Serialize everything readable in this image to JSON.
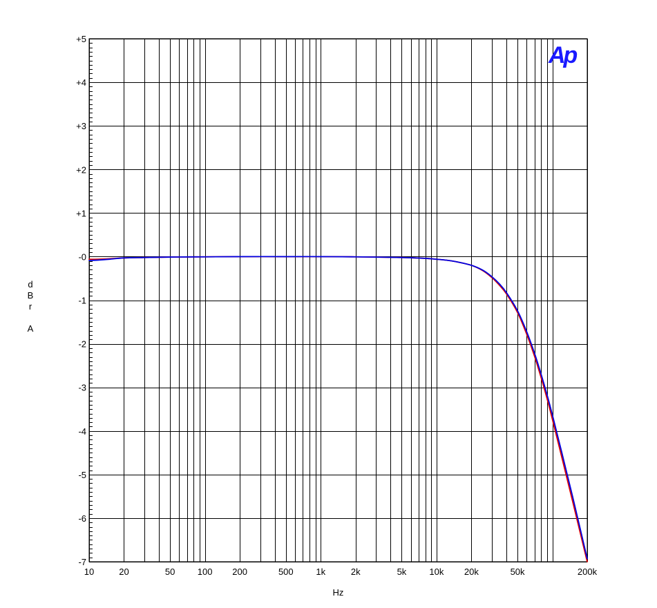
{
  "chart_data": {
    "type": "line",
    "x_scale": "log",
    "xlim": [
      10,
      200000
    ],
    "ylim": [
      -7,
      5
    ],
    "xlabel": "Hz",
    "ylabel_chars": [
      "d",
      "B",
      "r",
      "",
      "A"
    ],
    "x_tick_labels": [
      {
        "value": 10,
        "label": "10"
      },
      {
        "value": 20,
        "label": "20"
      },
      {
        "value": 50,
        "label": "50"
      },
      {
        "value": 100,
        "label": "100"
      },
      {
        "value": 200,
        "label": "200"
      },
      {
        "value": 500,
        "label": "500"
      },
      {
        "value": 1000,
        "label": "1k"
      },
      {
        "value": 2000,
        "label": "2k"
      },
      {
        "value": 5000,
        "label": "5k"
      },
      {
        "value": 10000,
        "label": "10k"
      },
      {
        "value": 20000,
        "label": "20k"
      },
      {
        "value": 50000,
        "label": "50k"
      },
      {
        "value": 200000,
        "label": "200k"
      }
    ],
    "y_tick_labels": [
      {
        "value": 5,
        "label": "+5"
      },
      {
        "value": 4,
        "label": "+4"
      },
      {
        "value": 3,
        "label": "+3"
      },
      {
        "value": 2,
        "label": "+2"
      },
      {
        "value": 1,
        "label": "+1"
      },
      {
        "value": 0,
        "label": "-0"
      },
      {
        "value": -1,
        "label": "-1"
      },
      {
        "value": -2,
        "label": "-2"
      },
      {
        "value": -3,
        "label": "-3"
      },
      {
        "value": -4,
        "label": "-4"
      },
      {
        "value": -5,
        "label": "-5"
      },
      {
        "value": -6,
        "label": "-6"
      },
      {
        "value": -7,
        "label": "-7"
      }
    ],
    "grid": true,
    "logo": "Ap",
    "series": [
      {
        "color": "#e00000",
        "x": [
          10,
          12,
          15,
          20,
          30,
          50,
          100,
          200,
          500,
          1000,
          2000,
          5000,
          8000,
          10000,
          12000,
          15000,
          20000,
          25000,
          30000,
          35000,
          40000,
          50000,
          60000,
          70000,
          80000,
          90000,
          100000,
          120000,
          150000,
          200000
        ],
        "y": [
          -0.06,
          -0.06,
          -0.05,
          -0.03,
          -0.02,
          -0.01,
          -0.005,
          0,
          0,
          0,
          -0.005,
          -0.02,
          -0.04,
          -0.06,
          -0.08,
          -0.12,
          -0.2,
          -0.32,
          -0.48,
          -0.66,
          -0.85,
          -1.28,
          -1.78,
          -2.28,
          -2.78,
          -3.26,
          -3.73,
          -4.58,
          -5.63,
          -7.0
        ]
      },
      {
        "color": "#0000e0",
        "x": [
          10,
          12,
          15,
          20,
          30,
          50,
          100,
          200,
          500,
          1000,
          2000,
          5000,
          8000,
          10000,
          12000,
          15000,
          20000,
          25000,
          30000,
          35000,
          40000,
          50000,
          60000,
          70000,
          80000,
          90000,
          100000,
          120000,
          150000,
          200000
        ],
        "y": [
          -0.09,
          -0.08,
          -0.06,
          -0.03,
          -0.02,
          -0.01,
          -0.005,
          0,
          0,
          0,
          -0.005,
          -0.02,
          -0.04,
          -0.06,
          -0.08,
          -0.12,
          -0.2,
          -0.31,
          -0.46,
          -0.63,
          -0.82,
          -1.24,
          -1.72,
          -2.21,
          -2.7,
          -3.17,
          -3.63,
          -4.47,
          -5.52,
          -6.93
        ]
      }
    ]
  }
}
